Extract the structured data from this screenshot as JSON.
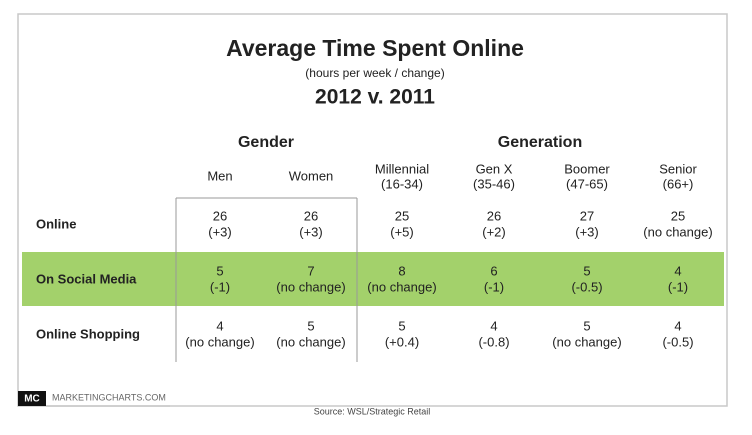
{
  "header": {
    "title": "Average Time Spent Online",
    "subtitle": "(hours per week / change)",
    "period": "2012 v. 2011"
  },
  "table": {
    "groups": [
      "Gender",
      "Generation"
    ],
    "columns": [
      [
        "Men"
      ],
      [
        "Women"
      ],
      [
        "Millennial",
        "(16-34)"
      ],
      [
        "Gen X",
        "(35-46)"
      ],
      [
        "Boomer",
        "(47-65)"
      ],
      [
        "Senior",
        "(66+)"
      ]
    ],
    "rows": [
      {
        "label": "Online",
        "cells": [
          [
            "26",
            "(+3)"
          ],
          [
            "26",
            "(+3)"
          ],
          [
            "25",
            "(+5)"
          ],
          [
            "26",
            "(+2)"
          ],
          [
            "27",
            "(+3)"
          ],
          [
            "25",
            "(no change)"
          ]
        ]
      },
      {
        "label": "On Social Media",
        "cells": [
          [
            "5",
            "(-1)"
          ],
          [
            "7",
            "(no change)"
          ],
          [
            "8",
            "(no change)"
          ],
          [
            "6",
            "(-1)"
          ],
          [
            "5",
            "(-0.5)"
          ],
          [
            "4",
            "(-1)"
          ]
        ]
      },
      {
        "label": "Online Shopping",
        "cells": [
          [
            "4",
            "(no change)"
          ],
          [
            "5",
            "(no change)"
          ],
          [
            "5",
            "(+0.4)"
          ],
          [
            "4",
            "(-0.8)"
          ],
          [
            "5",
            "(no change)"
          ],
          [
            "4",
            "(-0.5)"
          ]
        ]
      }
    ]
  },
  "footer": {
    "logo": "MC",
    "brand": "MARKETINGCHARTS.COM",
    "source": "Source: WSL/Strategic Retail"
  }
}
